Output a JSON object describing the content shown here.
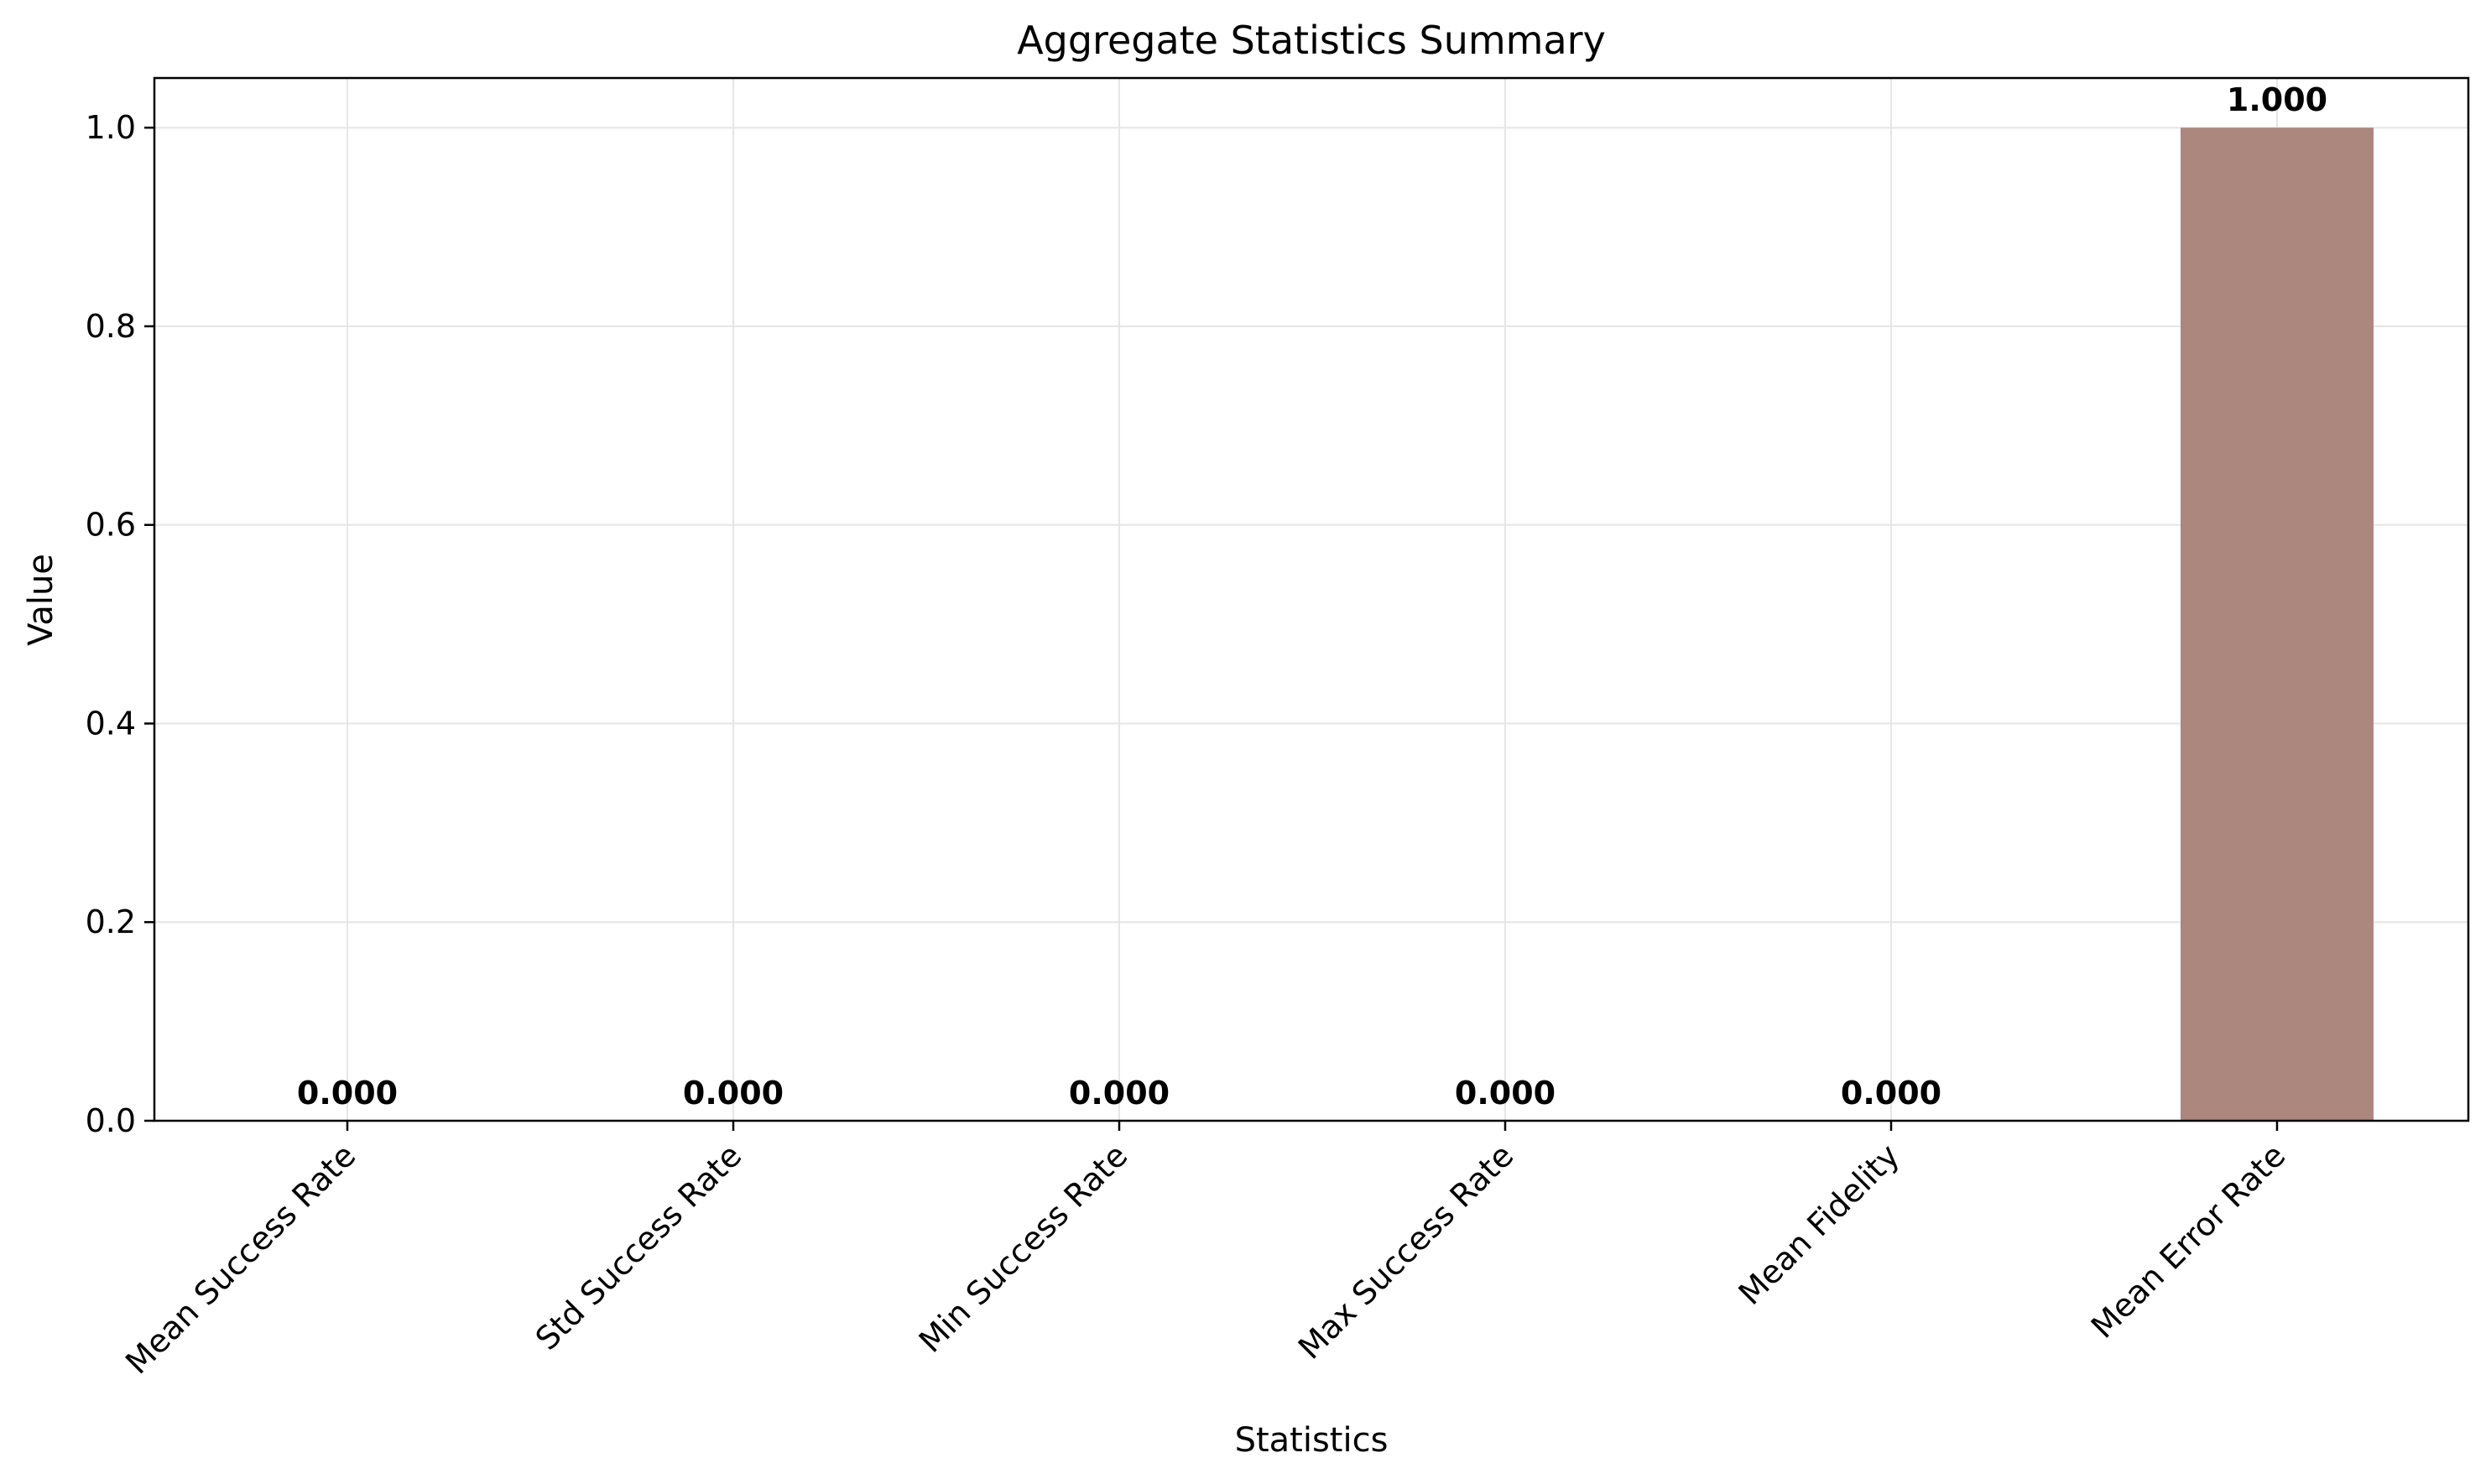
{
  "chart_data": {
    "type": "bar",
    "title": "Aggregate Statistics Summary",
    "xlabel": "Statistics",
    "ylabel": "Value",
    "categories": [
      "Mean Success Rate",
      "Std Success Rate",
      "Min Success Rate",
      "Max Success Rate",
      "Mean Fidelity",
      "Mean Error Rate"
    ],
    "values": [
      0.0,
      0.0,
      0.0,
      0.0,
      0.0,
      1.0
    ],
    "value_labels": [
      "0.000",
      "0.000",
      "0.000",
      "0.000",
      "0.000",
      "1.000"
    ],
    "yticks": [
      "0.0",
      "0.2",
      "0.4",
      "0.6",
      "0.8",
      "1.0"
    ],
    "ytick_values": [
      0,
      0.2,
      0.4,
      0.6,
      0.8,
      1.0
    ],
    "ylim": [
      0,
      1.05
    ],
    "grid": true,
    "bar_color": "#ac877d",
    "grid_color": "#e6e6e6"
  }
}
